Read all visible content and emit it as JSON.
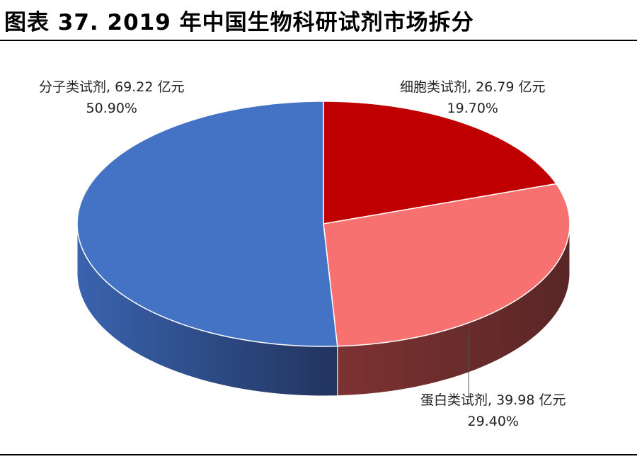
{
  "title": "图表 37. 2019 年中国生物科研试剂市场拆分",
  "chart_data": {
    "type": "pie",
    "title": "图表 37. 2019 年中国生物科研试剂市场拆分",
    "slices": [
      {
        "name": "分子类试剂",
        "value": 69.22,
        "unit": "亿元",
        "percent": 50.9,
        "percent_label": "50.90%",
        "label": "分子类试剂, 69.22 亿元",
        "color": "#4472C4",
        "side_color": "#34589C"
      },
      {
        "name": "细胞类试剂",
        "value": 26.79,
        "unit": "亿元",
        "percent": 19.7,
        "percent_label": "19.70%",
        "label": "细胞类试剂, 26.79 亿元",
        "color": "#C00000",
        "side_color": "#7A1A1A"
      },
      {
        "name": "蛋白类试剂",
        "value": 39.98,
        "unit": "亿元",
        "percent": 29.4,
        "percent_label": "29.40%",
        "label": "蛋白类试剂, 39.98 亿元",
        "color": "#F87171",
        "side_color": "#6E2A2A"
      }
    ],
    "legend": "none",
    "style": "3d-pie"
  }
}
